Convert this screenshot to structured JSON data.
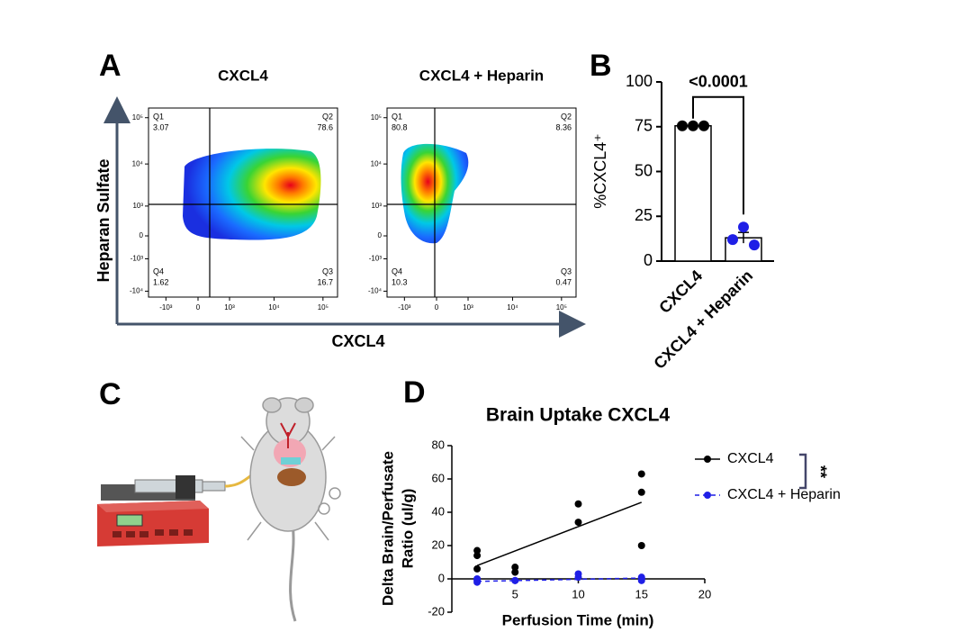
{
  "panel_labels": [
    "A",
    "B",
    "C",
    "D"
  ],
  "flow": {
    "xlabel": "CXCL4",
    "ylabel": "Heparan Sulfate",
    "xticks": [
      {
        "value": -1000,
        "label": "-10³"
      },
      0,
      {
        "value": 1000,
        "label": "10³"
      },
      {
        "value": 10000,
        "label": "10⁴"
      },
      {
        "value": 100000,
        "label": "10⁵"
      }
    ],
    "yticks": [
      {
        "value": -10000,
        "label": "-10⁴"
      },
      {
        "value": -1000,
        "label": "-10³"
      },
      0,
      {
        "value": 1000,
        "label": "10³"
      },
      {
        "value": 10000,
        "label": "10⁴"
      },
      {
        "value": 100000,
        "label": "10⁵"
      }
    ],
    "plots": [
      {
        "title": "CXCL4",
        "quadrants": [
          {
            "name": "Q1",
            "value": 3.07
          },
          {
            "name": "Q2",
            "value": 78.6
          },
          {
            "name": "Q3",
            "value": 16.7
          },
          {
            "name": "Q4",
            "value": 1.62
          }
        ]
      },
      {
        "title": "CXCL4 + Heparin",
        "quadrants": [
          {
            "name": "Q1",
            "value": 80.8
          },
          {
            "name": "Q2",
            "value": 8.36
          },
          {
            "name": "Q3",
            "value": 0.47
          },
          {
            "name": "Q4",
            "value": 10.3
          }
        ]
      }
    ]
  },
  "chart_data": [
    {
      "type": "bar",
      "ylabel": "%CXCL4⁺",
      "categories": [
        "CXCL4",
        "CXCL4 + Heparin"
      ],
      "values": [
        75.5,
        13
      ],
      "errors": [
        0,
        3
      ],
      "points": [
        [
          75.5,
          75.5,
          75.5
        ],
        [
          19,
          12,
          9
        ]
      ],
      "colors": [
        "#000000",
        "#1f1fe6"
      ],
      "ylim": [
        0,
        100
      ],
      "yticks": [
        0,
        25,
        50,
        75,
        100
      ],
      "annotation": "<0.0001"
    },
    {
      "type": "scatter",
      "title": "Brain Uptake CXCL4",
      "xlabel": "Perfusion Time (min)",
      "ylabel": [
        "Delta Brain/Perfusate",
        "Ratio (ul/g)"
      ],
      "xlim": [
        0,
        20
      ],
      "xticks": [
        5,
        10,
        15,
        20
      ],
      "ylim": [
        -20,
        80
      ],
      "yticks": [
        -20,
        0,
        20,
        40,
        60,
        80
      ],
      "series": [
        {
          "name": "CXCL4",
          "color": "#000000",
          "x": [
            2,
            2,
            2,
            5,
            5,
            10,
            10,
            15,
            15,
            15
          ],
          "values": [
            17,
            14,
            6,
            7,
            4,
            45,
            34,
            63,
            52,
            20
          ],
          "fit": {
            "x": [
              2,
              15
            ],
            "values": [
              8,
              46
            ]
          }
        },
        {
          "name": "CXCL4 + Heparin",
          "color": "#1f1fe6",
          "x": [
            2,
            2,
            2,
            5,
            5,
            10,
            10,
            15,
            15,
            15
          ],
          "values": [
            -1,
            -2,
            0,
            -1,
            -1,
            3,
            1,
            0,
            1,
            -1
          ],
          "fit": {
            "x": [
              2,
              15
            ],
            "values": [
              -1.5,
              0.5
            ]
          }
        }
      ],
      "annotation": "**"
    }
  ]
}
